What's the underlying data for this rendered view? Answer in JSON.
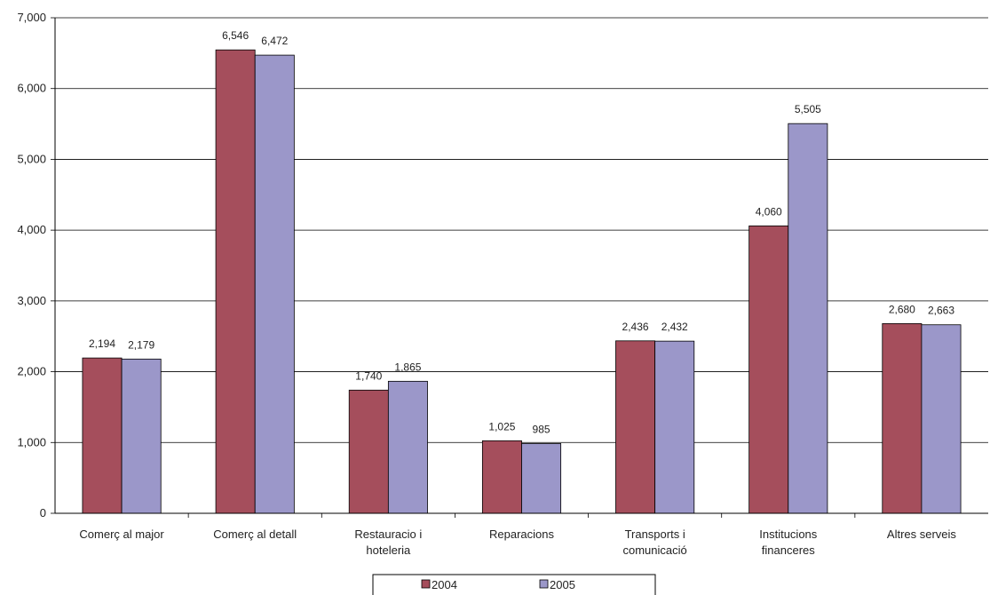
{
  "chart_data": {
    "type": "bar",
    "title": "",
    "xlabel": "",
    "ylabel": "",
    "categories": [
      [
        "Comerç al major"
      ],
      [
        "Comerç al detall"
      ],
      [
        "Restauracio i",
        "hoteleria"
      ],
      [
        "Reparacions"
      ],
      [
        "Transports i",
        "comunicació"
      ],
      [
        "Institucions",
        "financeres"
      ],
      [
        "Altres serveis"
      ]
    ],
    "series": [
      {
        "name": "2004",
        "color": "#a54e5c",
        "values": [
          2194,
          6546,
          1740,
          1025,
          2436,
          4060,
          2680
        ]
      },
      {
        "name": "2005",
        "color": "#9b97c9",
        "values": [
          2179,
          6472,
          1865,
          985,
          2432,
          5505,
          2663
        ]
      }
    ],
    "data_labels": [
      [
        "2,194",
        "6,546",
        "1,740",
        "1,025",
        "2,436",
        "4,060",
        "2,680"
      ],
      [
        "2,179",
        "6,472",
        "1,865",
        "985",
        "2,432",
        "5,505",
        "2,663"
      ]
    ],
    "ylim": [
      0,
      7000
    ],
    "yticks": [
      0,
      1000,
      2000,
      3000,
      4000,
      5000,
      6000,
      7000
    ],
    "ytick_labels": [
      "0",
      "1,000",
      "2,000",
      "3,000",
      "4,000",
      "5,000",
      "6,000",
      "7,000"
    ],
    "grid": true,
    "legend_position": "bottom"
  }
}
